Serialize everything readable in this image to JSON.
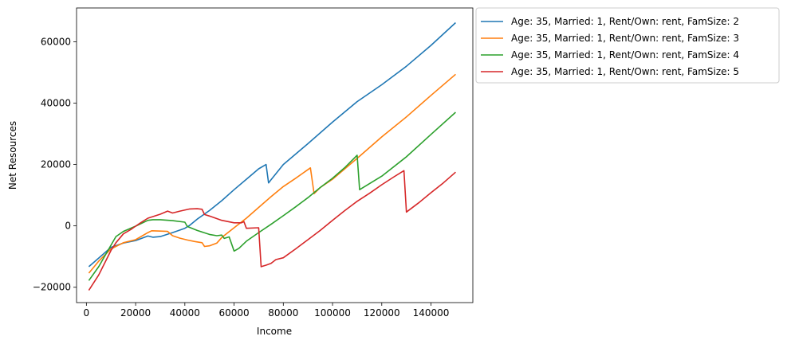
{
  "chart_data": {
    "type": "line",
    "xlabel": "Income",
    "ylabel": "Net Resources",
    "xlim": [
      -4000,
      157000
    ],
    "ylim": [
      -25000,
      71000
    ],
    "xticks": [
      0,
      20000,
      40000,
      60000,
      80000,
      100000,
      120000,
      140000
    ],
    "yticks": [
      -20000,
      0,
      20000,
      40000,
      60000
    ],
    "grid": false,
    "legend_position": "outside-top-right",
    "series": [
      {
        "name": "Age: 35, Married: 1, Rent/Own: rent, FamSize: 2",
        "color": "#1f77b4",
        "points": [
          [
            1000,
            -13300
          ],
          [
            5000,
            -10500
          ],
          [
            10000,
            -7000
          ],
          [
            15000,
            -5600
          ],
          [
            20000,
            -4800
          ],
          [
            25000,
            -3300
          ],
          [
            27000,
            -3700
          ],
          [
            30000,
            -3500
          ],
          [
            35000,
            -2200
          ],
          [
            40000,
            -800
          ],
          [
            42000,
            200
          ],
          [
            45000,
            2200
          ],
          [
            50000,
            5000
          ],
          [
            55000,
            8200
          ],
          [
            60000,
            11800
          ],
          [
            65000,
            15200
          ],
          [
            70000,
            18600
          ],
          [
            73000,
            20000
          ],
          [
            74000,
            14000
          ],
          [
            75000,
            15000
          ],
          [
            80000,
            20000
          ],
          [
            90000,
            26800
          ],
          [
            100000,
            33800
          ],
          [
            110000,
            40500
          ],
          [
            120000,
            46000
          ],
          [
            130000,
            52000
          ],
          [
            140000,
            58800
          ],
          [
            150000,
            66200
          ]
        ]
      },
      {
        "name": "Age: 35, Married: 1, Rent/Own: rent, FamSize: 3",
        "color": "#ff7f0e",
        "points": [
          [
            1000,
            -15400
          ],
          [
            5000,
            -11500
          ],
          [
            10000,
            -7500
          ],
          [
            15000,
            -5500
          ],
          [
            20000,
            -4500
          ],
          [
            25000,
            -2200
          ],
          [
            26500,
            -1600
          ],
          [
            30000,
            -1700
          ],
          [
            33000,
            -1800
          ],
          [
            35000,
            -3200
          ],
          [
            38000,
            -4000
          ],
          [
            41000,
            -4600
          ],
          [
            44000,
            -5100
          ],
          [
            47000,
            -5500
          ],
          [
            48000,
            -6700
          ],
          [
            50000,
            -6500
          ],
          [
            53000,
            -5600
          ],
          [
            55000,
            -3800
          ],
          [
            60000,
            -600
          ],
          [
            65000,
            2500
          ],
          [
            70000,
            6000
          ],
          [
            75000,
            9500
          ],
          [
            80000,
            12800
          ],
          [
            85000,
            15500
          ],
          [
            91000,
            18900
          ],
          [
            92500,
            10500
          ],
          [
            95000,
            12500
          ],
          [
            100000,
            15200
          ],
          [
            110000,
            22000
          ],
          [
            120000,
            29000
          ],
          [
            130000,
            35500
          ],
          [
            140000,
            42500
          ],
          [
            150000,
            49400
          ]
        ]
      },
      {
        "name": "Age: 35, Married: 1, Rent/Own: rent, FamSize: 4",
        "color": "#2ca02c",
        "points": [
          [
            1000,
            -17800
          ],
          [
            5000,
            -13300
          ],
          [
            10000,
            -6300
          ],
          [
            12000,
            -3500
          ],
          [
            15000,
            -1800
          ],
          [
            20000,
            -100
          ],
          [
            25000,
            1800
          ],
          [
            27000,
            2000
          ],
          [
            30000,
            2000
          ],
          [
            35000,
            1700
          ],
          [
            40000,
            1200
          ],
          [
            41000,
            -200
          ],
          [
            45000,
            -1500
          ],
          [
            50000,
            -2800
          ],
          [
            53000,
            -3200
          ],
          [
            55000,
            -3000
          ],
          [
            56000,
            -4100
          ],
          [
            58000,
            -3600
          ],
          [
            60000,
            -8200
          ],
          [
            62000,
            -7300
          ],
          [
            65000,
            -5000
          ],
          [
            70000,
            -2200
          ],
          [
            75000,
            500
          ],
          [
            80000,
            3300
          ],
          [
            85000,
            6200
          ],
          [
            90000,
            9200
          ],
          [
            95000,
            12500
          ],
          [
            100000,
            15500
          ],
          [
            105000,
            19000
          ],
          [
            110000,
            23000
          ],
          [
            111000,
            11800
          ],
          [
            120000,
            16200
          ],
          [
            130000,
            22500
          ],
          [
            140000,
            29800
          ],
          [
            150000,
            37000
          ]
        ]
      },
      {
        "name": "Age: 35, Married: 1, Rent/Own: rent, FamSize: 5",
        "color": "#d62728",
        "points": [
          [
            1000,
            -21000
          ],
          [
            5000,
            -16000
          ],
          [
            10000,
            -8000
          ],
          [
            12000,
            -5500
          ],
          [
            15000,
            -2600
          ],
          [
            18000,
            -1200
          ],
          [
            20000,
            -100
          ],
          [
            22000,
            1000
          ],
          [
            25000,
            2500
          ],
          [
            30000,
            3800
          ],
          [
            33000,
            4800
          ],
          [
            35000,
            4200
          ],
          [
            38000,
            4800
          ],
          [
            42000,
            5500
          ],
          [
            45000,
            5600
          ],
          [
            47000,
            5400
          ],
          [
            48000,
            3700
          ],
          [
            50000,
            3200
          ],
          [
            55000,
            1800
          ],
          [
            60000,
            1000
          ],
          [
            63000,
            1000
          ],
          [
            64000,
            1400
          ],
          [
            65000,
            -800
          ],
          [
            70000,
            -600
          ],
          [
            71000,
            -13300
          ],
          [
            73000,
            -12800
          ],
          [
            75000,
            -12200
          ],
          [
            77000,
            -11000
          ],
          [
            80000,
            -10400
          ],
          [
            85000,
            -7500
          ],
          [
            90000,
            -4500
          ],
          [
            95000,
            -1500
          ],
          [
            100000,
            1800
          ],
          [
            105000,
            5000
          ],
          [
            110000,
            8000
          ],
          [
            115000,
            10600
          ],
          [
            120000,
            13400
          ],
          [
            125000,
            16000
          ],
          [
            129000,
            18000
          ],
          [
            130000,
            4500
          ],
          [
            135000,
            7500
          ],
          [
            140000,
            10800
          ],
          [
            145000,
            14000
          ],
          [
            150000,
            17500
          ]
        ]
      }
    ]
  }
}
